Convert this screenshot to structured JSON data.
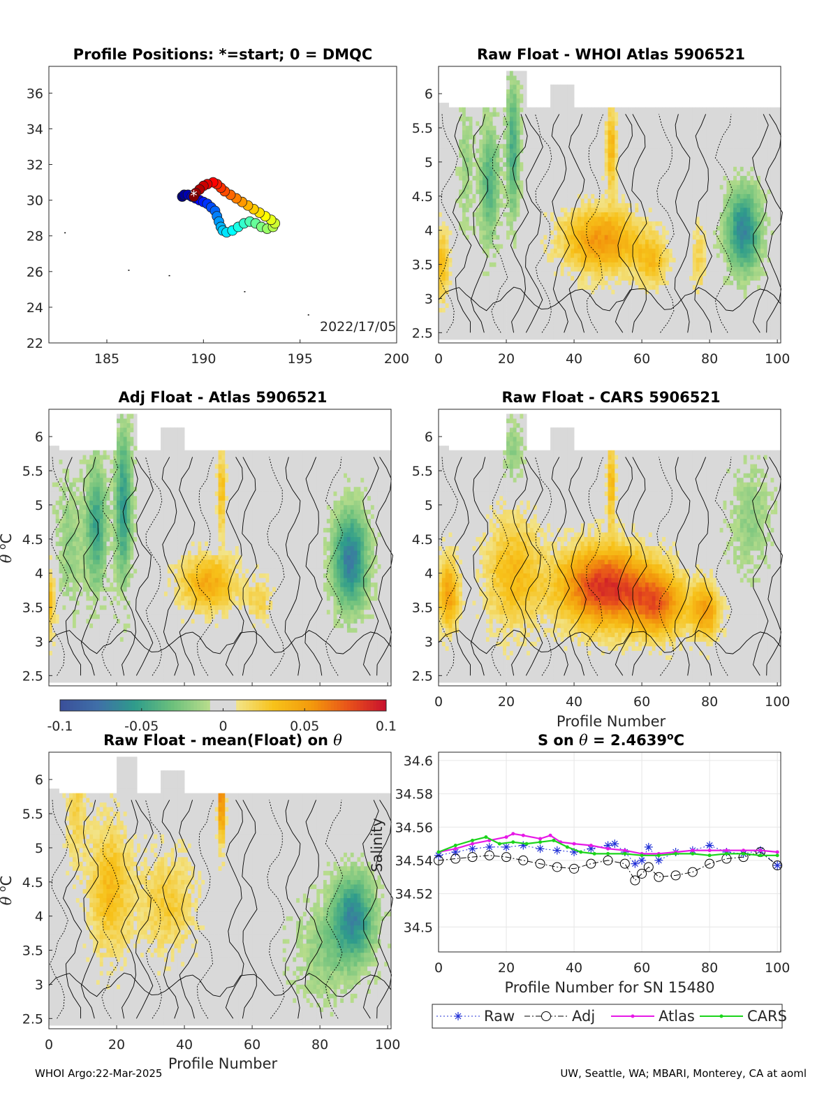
{
  "footer": {
    "left": "WHOI Argo:22-Mar-2025",
    "right": "UW, Seattle, WA; MBARI, Monterey, CA at aoml"
  },
  "colors": {
    "neutral": "#d9d9d9",
    "positive_ramp": [
      "#f2e48a",
      "#f7c21a",
      "#f39a0c",
      "#e8521a",
      "#c8102e"
    ],
    "negative_ramp": [
      "#b9dd8c",
      "#6cc07c",
      "#2f9c8b",
      "#3f6fa8",
      "#3a4f9a"
    ],
    "raw": "#1f2fd6",
    "adj": "#000000",
    "atlas": "#e619e6",
    "cars": "#1bd41b"
  },
  "colorbar": {
    "ticks": [
      "-0.1",
      "-0.05",
      "0",
      "0.05",
      "0.1"
    ],
    "range": [
      -0.1,
      0.1
    ]
  },
  "map": {
    "title": "Profile Positions: *=start; 0 = DMQC",
    "date_text": "2022/17/05",
    "xlim": [
      182,
      200
    ],
    "ylim": [
      22,
      37.5
    ],
    "xticks": [
      "185",
      "190",
      "195",
      "200"
    ],
    "yticks": [
      "22",
      "24",
      "26",
      "28",
      "30",
      "32",
      "34",
      "36"
    ],
    "start_marker": "*",
    "islands": [
      [
        182.8,
        28.2
      ],
      [
        186.1,
        26.1
      ],
      [
        188.2,
        25.8
      ],
      [
        192.1,
        24.9
      ],
      [
        195.4,
        23.6
      ]
    ],
    "track": [
      [
        189.5,
        30.2
      ],
      [
        189.6,
        30.4
      ],
      [
        189.8,
        30.6
      ],
      [
        190.0,
        30.8
      ],
      [
        190.2,
        30.9
      ],
      [
        190.5,
        31.0
      ],
      [
        190.7,
        30.9
      ],
      [
        190.9,
        30.7
      ],
      [
        191.1,
        30.5
      ],
      [
        191.4,
        30.3
      ],
      [
        191.7,
        30.1
      ],
      [
        192.0,
        29.9
      ],
      [
        192.3,
        29.7
      ],
      [
        192.6,
        29.5
      ],
      [
        192.9,
        29.3
      ],
      [
        193.2,
        29.1
      ],
      [
        193.5,
        28.9
      ],
      [
        193.7,
        28.7
      ],
      [
        193.6,
        28.5
      ],
      [
        193.3,
        28.4
      ],
      [
        193.0,
        28.5
      ],
      [
        192.7,
        28.7
      ],
      [
        192.4,
        28.8
      ],
      [
        192.1,
        28.7
      ],
      [
        191.8,
        28.5
      ],
      [
        191.5,
        28.3
      ],
      [
        191.2,
        28.2
      ],
      [
        191.0,
        28.3
      ],
      [
        190.9,
        28.5
      ],
      [
        190.8,
        28.8
      ],
      [
        190.7,
        29.1
      ],
      [
        190.6,
        29.4
      ],
      [
        190.4,
        29.6
      ],
      [
        190.2,
        29.8
      ],
      [
        190.0,
        29.9
      ],
      [
        189.8,
        30.0
      ],
      [
        189.6,
        30.1
      ],
      [
        189.4,
        30.2
      ],
      [
        189.2,
        30.3
      ],
      [
        189.0,
        30.3
      ],
      [
        188.9,
        30.2
      ]
    ]
  },
  "panels": {
    "whoi": {
      "title": "Raw Float - WHOI Atlas  5906521"
    },
    "adj": {
      "title": "Adj Float - Atlas  5906521"
    },
    "cars": {
      "title": "Raw Float - CARS  5906521",
      "xlabel": "Profile Number"
    },
    "mean": {
      "title": "Raw Float - mean(Float) on θ",
      "xlabel": "Profile Number"
    }
  },
  "section_axes": {
    "xlim": [
      0,
      101
    ],
    "ylim": [
      2.35,
      6.4
    ],
    "xticks": [
      "0",
      "20",
      "40",
      "60",
      "80",
      "100"
    ],
    "yticks": [
      "2.5",
      "3",
      "3.5",
      "4",
      "4.5",
      "5",
      "5.5",
      "6"
    ],
    "ylabel": "θ °C"
  },
  "chart_data": [
    {
      "type": "scatter",
      "title": "Profile Positions: *=start; 0 = DMQC",
      "xlim": [
        182,
        200
      ],
      "ylim": [
        22,
        37.5
      ],
      "annotation": "2022/17/05"
    },
    {
      "type": "heatmap",
      "title": "Raw Float - WHOI Atlas  5906521",
      "xlim": [
        0,
        101
      ],
      "ylim": [
        2.35,
        6.4
      ],
      "clim": [
        -0.1,
        0.1
      ]
    },
    {
      "type": "heatmap",
      "title": "Adj Float - Atlas  5906521",
      "xlim": [
        0,
        101
      ],
      "ylim": [
        2.35,
        6.4
      ],
      "clim": [
        -0.1,
        0.1
      ]
    },
    {
      "type": "heatmap",
      "title": "Raw Float - CARS  5906521",
      "xlabel": "Profile Number",
      "xlim": [
        0,
        101
      ],
      "ylim": [
        2.35,
        6.4
      ],
      "clim": [
        -0.1,
        0.1
      ]
    },
    {
      "type": "heatmap",
      "title": "Raw Float - mean(Float) on θ",
      "xlabel": "Profile Number",
      "xlim": [
        0,
        101
      ],
      "ylim": [
        2.35,
        6.4
      ],
      "clim": [
        -0.1,
        0.1
      ]
    },
    {
      "type": "line",
      "title": "S on θ = 2.4639°C",
      "xlabel": "Profile Number for SN 15480",
      "ylabel": "Salinity",
      "xlim": [
        0,
        101
      ],
      "ylim": [
        34.485,
        34.605
      ],
      "xticks": [
        "0",
        "20",
        "40",
        "60",
        "80",
        "100"
      ],
      "yticks": [
        "34.5",
        "34.52",
        "34.54",
        "34.56",
        "34.58",
        "34.6"
      ],
      "grid": true,
      "legend": "bottom",
      "series": [
        {
          "name": "Raw",
          "x": [
            0,
            5,
            10,
            15,
            20,
            25,
            30,
            35,
            40,
            45,
            50,
            52,
            55,
            58,
            60,
            62,
            65,
            70,
            75,
            80,
            85,
            90,
            95,
            100
          ],
          "y": [
            34.543,
            34.545,
            34.547,
            34.548,
            34.548,
            34.549,
            34.547,
            34.546,
            34.545,
            34.547,
            34.549,
            34.55,
            34.545,
            34.538,
            34.54,
            34.548,
            34.54,
            34.545,
            34.546,
            34.549,
            34.545,
            34.544,
            34.546,
            34.537
          ]
        },
        {
          "name": "Adj",
          "x": [
            0,
            5,
            10,
            15,
            20,
            25,
            30,
            35,
            40,
            45,
            50,
            55,
            58,
            60,
            62,
            65,
            70,
            75,
            80,
            85,
            90,
            95,
            100
          ],
          "y": [
            34.54,
            34.541,
            34.542,
            34.543,
            34.542,
            34.54,
            34.538,
            34.536,
            34.535,
            34.538,
            34.54,
            34.538,
            34.528,
            34.532,
            34.536,
            34.53,
            34.531,
            34.533,
            34.538,
            34.541,
            34.542,
            34.545,
            34.537
          ]
        },
        {
          "name": "Atlas",
          "x": [
            0,
            5,
            10,
            15,
            20,
            22,
            25,
            30,
            33,
            36,
            40,
            45,
            50,
            55,
            60,
            65,
            70,
            75,
            80,
            85,
            90,
            95,
            100
          ],
          "y": [
            34.545,
            34.547,
            34.55,
            34.552,
            34.554,
            34.556,
            34.555,
            34.553,
            34.555,
            34.551,
            34.55,
            34.549,
            34.547,
            34.546,
            34.544,
            34.544,
            34.545,
            34.546,
            34.546,
            34.546,
            34.546,
            34.546,
            34.545
          ]
        },
        {
          "name": "CARS",
          "x": [
            0,
            5,
            10,
            14,
            18,
            22,
            26,
            30,
            34,
            38,
            42,
            46,
            50,
            55,
            60,
            65,
            70,
            75,
            80,
            85,
            90,
            95,
            100
          ],
          "y": [
            34.545,
            34.549,
            34.552,
            34.554,
            34.55,
            34.551,
            34.55,
            34.551,
            34.552,
            34.548,
            34.545,
            34.544,
            34.544,
            34.544,
            34.543,
            34.543,
            34.544,
            34.544,
            34.543,
            34.544,
            34.544,
            34.543,
            34.543
          ]
        }
      ]
    }
  ],
  "salinity": {
    "title_prefix": "S on ",
    "title_theta": "θ",
    "title_value": " = 2.4639",
    "title_deg": "o",
    "title_unit": "C"
  }
}
